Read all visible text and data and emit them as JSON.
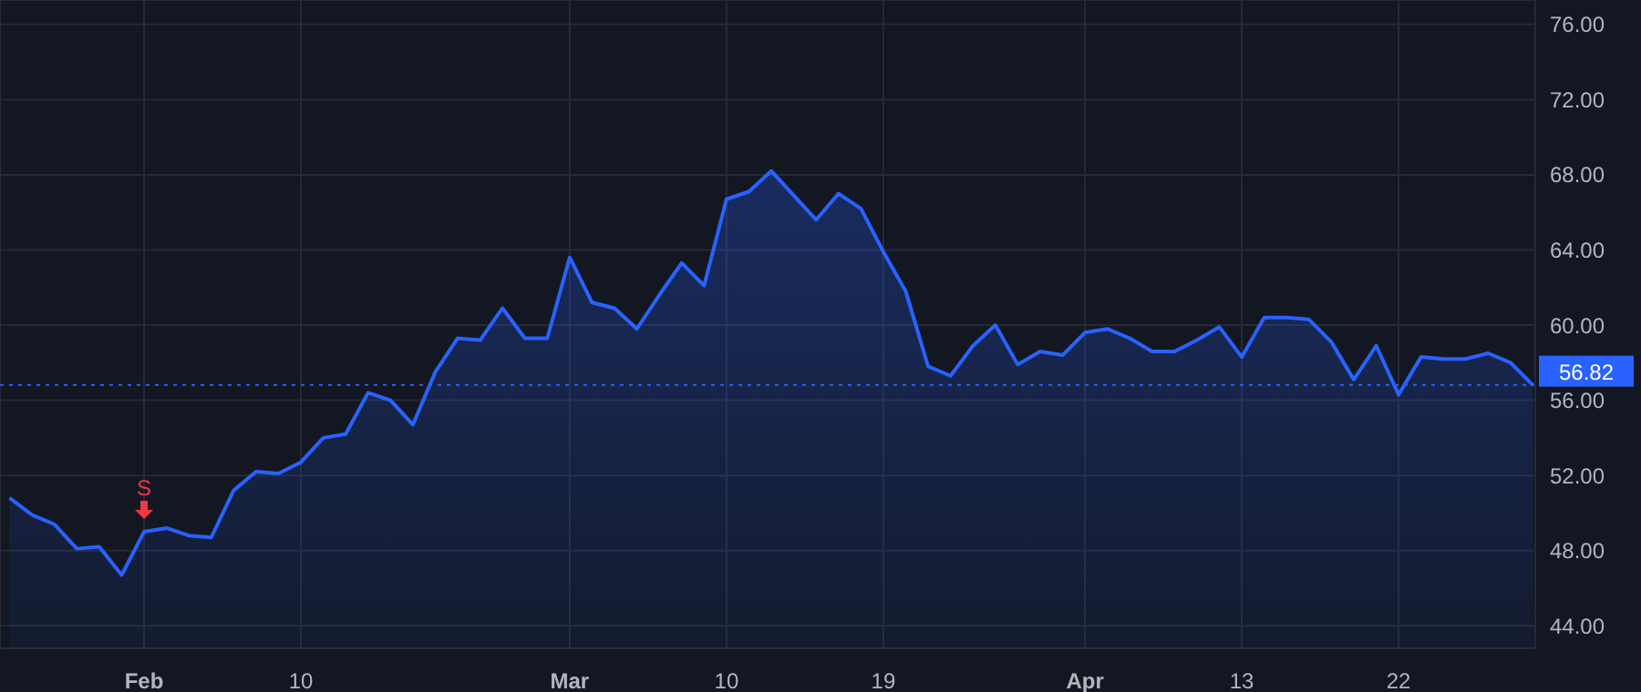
{
  "chart_data": {
    "type": "area",
    "categories": [
      null,
      null,
      null,
      null,
      null,
      null,
      "Feb",
      null,
      null,
      null,
      null,
      null,
      null,
      "10",
      null,
      null,
      null,
      null,
      null,
      null,
      null,
      null,
      null,
      null,
      null,
      "Mar",
      null,
      null,
      null,
      null,
      null,
      null,
      "10",
      null,
      null,
      null,
      null,
      null,
      null,
      "19",
      null,
      null,
      null,
      null,
      null,
      null,
      null,
      null,
      "Apr",
      null,
      null,
      null,
      null,
      null,
      null,
      "13",
      null,
      null,
      null,
      null,
      null,
      null,
      "22",
      null,
      null,
      null,
      null,
      null,
      null
    ],
    "series": [
      {
        "color": "#2962ff",
        "values": [
          50.8,
          49.9,
          49.4,
          48.1,
          48.2,
          46.7,
          49.0,
          49.2,
          48.8,
          48.7,
          51.2,
          52.2,
          52.1,
          52.7,
          54.0,
          54.2,
          56.4,
          56.0,
          54.7,
          57.5,
          59.3,
          59.2,
          60.9,
          59.3,
          59.3,
          63.6,
          61.2,
          60.9,
          59.8,
          61.6,
          63.3,
          62.1,
          66.7,
          67.1,
          68.2,
          66.9,
          65.6,
          67.0,
          66.2,
          63.9,
          61.8,
          57.8,
          57.3,
          58.9,
          60.0,
          57.9,
          58.6,
          58.4,
          59.6,
          59.8,
          59.3,
          58.6,
          58.6,
          59.2,
          59.9,
          58.3,
          60.4,
          60.4,
          60.3,
          59.1,
          57.1,
          58.9,
          56.3,
          58.3,
          58.2,
          58.2,
          58.5,
          58.0,
          56.8
        ]
      }
    ],
    "ylim": [
      42.8,
      77.3
    ],
    "yticks": [
      {
        "value": 44,
        "label": "44.00"
      },
      {
        "value": 48,
        "label": "48.00"
      },
      {
        "value": 52,
        "label": "52.00"
      },
      {
        "value": 56,
        "label": "56.00"
      },
      {
        "value": 60,
        "label": "60.00"
      },
      {
        "value": 64,
        "label": "64.00"
      },
      {
        "value": 68,
        "label": "68.00"
      },
      {
        "value": 72,
        "label": "72.00"
      },
      {
        "value": 76,
        "label": "76.00"
      }
    ],
    "grid": true,
    "legend": false,
    "marker": "none",
    "line_style": "solid",
    "ref_lines": [
      {
        "axis": "y",
        "value": 56.82,
        "label": "56.82",
        "color": "#2962ff",
        "line_style": "dotted"
      }
    ],
    "annotations": [
      {
        "text": "S",
        "x": "Feb",
        "y": 49.0
      }
    ]
  }
}
